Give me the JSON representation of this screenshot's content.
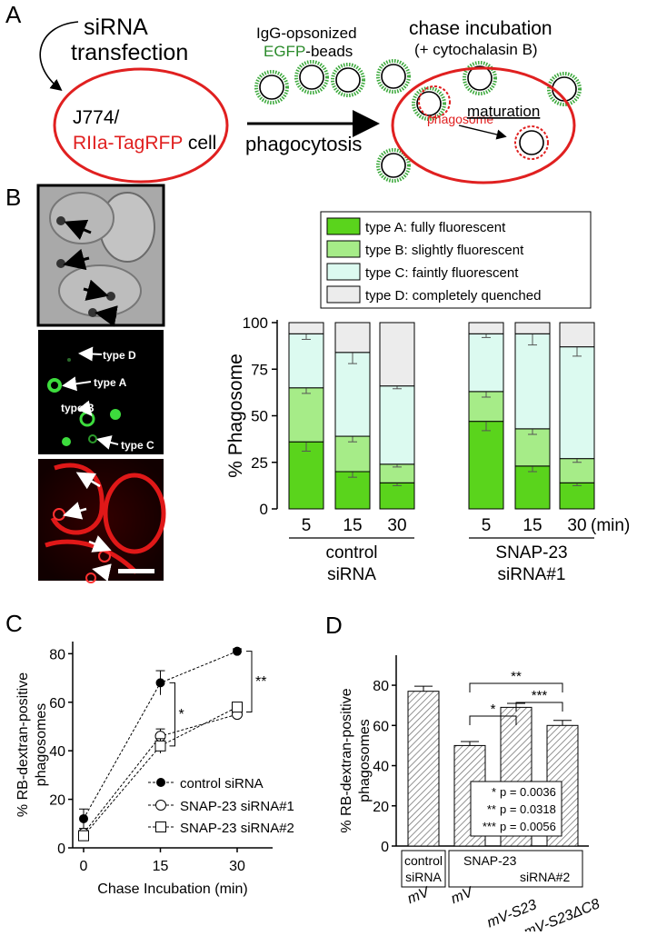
{
  "panelA": {
    "label": "A",
    "sirna_line1": "siRNA",
    "sirna_line2": "transfection",
    "cell_line1": "J774/",
    "cell_line2_red": "RIIa-TagRFP",
    "cell_line2_black": " cell",
    "beads_line1": "IgG-opsonized",
    "beads_egfp": "EGFP",
    "beads_rest": "-beads",
    "arrow_label": "phagocytosis",
    "chase_line1": "chase incubation",
    "chase_line2": "(+ cytochalasin B)",
    "maturation": "maturation",
    "phagosome": "phagosome"
  },
  "panelB": {
    "label": "B",
    "mic_labels": [
      "type D",
      "type A",
      "type B",
      "type C"
    ],
    "chart_data": {
      "type": "bar",
      "stacked": true,
      "categories": [
        "5",
        "15",
        "30",
        "5",
        "15",
        "30"
      ],
      "x_unit": "(min)",
      "groups": [
        {
          "line1": "control",
          "line2": "siRNA"
        },
        {
          "line1": "SNAP-23",
          "line2": "siRNA#1"
        }
      ],
      "ylabel": "% Phagosome",
      "ylim": [
        0,
        100
      ],
      "yticks": [
        0,
        25,
        50,
        75,
        100
      ],
      "series": [
        {
          "name": "type A: fully fluorescent",
          "color": "#5ad41c",
          "values": [
            36,
            20,
            14,
            47,
            23,
            14
          ],
          "err": [
            5,
            3,
            1.5,
            5,
            3,
            1.5
          ]
        },
        {
          "name": "type B: slightly fluorescent",
          "color": "#a6ec88",
          "values": [
            29,
            19,
            10,
            16,
            20,
            13
          ],
          "err": [
            3,
            3,
            1.5,
            3,
            3,
            2
          ]
        },
        {
          "name": "type C: faintly fluorescent",
          "color": "#dcfaf0",
          "values": [
            29,
            45,
            42,
            31,
            51,
            60
          ],
          "err": [
            3,
            6,
            1.5,
            2,
            6,
            5
          ]
        },
        {
          "name": "type D: completely quenched",
          "color": "#ececec",
          "values": [
            6,
            16,
            34,
            6,
            6,
            13
          ],
          "err": [
            3,
            3,
            3,
            3,
            3,
            1.5
          ]
        }
      ]
    }
  },
  "panelC": {
    "label": "C",
    "chart_data": {
      "type": "line",
      "x": [
        0,
        15,
        30
      ],
      "xlabel": "Chase Incubation (min)",
      "ylabel_line1": "% RB-dextran-positive",
      "ylabel_line2": "phagosomes",
      "ylim": [
        0,
        85
      ],
      "yticks": [
        0,
        20,
        40,
        60,
        80
      ],
      "xticks": [
        0,
        15,
        30
      ],
      "series": [
        {
          "name": "control siRNA",
          "marker": "filled-circle",
          "values": [
            12,
            68,
            81
          ],
          "err": [
            4,
            5,
            1
          ]
        },
        {
          "name": "SNAP-23 siRNA#1",
          "marker": "open-circle",
          "values": [
            6,
            46,
            55
          ],
          "err": [
            2,
            3,
            1
          ]
        },
        {
          "name": "SNAP-23 siRNA#2",
          "marker": "open-square",
          "values": [
            5,
            42,
            58
          ],
          "err": [
            2,
            3,
            1
          ]
        }
      ],
      "significance": [
        {
          "x": 15,
          "label": "*"
        },
        {
          "x": 30,
          "label": "**"
        }
      ]
    }
  },
  "panelD": {
    "label": "D",
    "chart_data": {
      "type": "bar",
      "categories": [
        "mV",
        "mV",
        "mV-S23",
        "mV-S23ΔC8"
      ],
      "values": [
        77,
        50,
        69,
        60
      ],
      "err": [
        2.5,
        2,
        2,
        2.5
      ],
      "ylabel_line1": "% RB-dextran-positive",
      "ylabel_line2": "phagosomes",
      "ylim": [
        0,
        85
      ],
      "yticks": [
        0,
        20,
        40,
        60,
        80
      ],
      "group1_line1": "control",
      "group1_line2": "siRNA",
      "group2_line1": "SNAP-23",
      "group2_line2": "siRNA#2",
      "comparisons": [
        {
          "from": 1,
          "to": 2,
          "label": "*"
        },
        {
          "from": 2,
          "to": 3,
          "label": "***"
        },
        {
          "from": 1,
          "to": 3,
          "label": "**"
        }
      ],
      "pvalues": [
        {
          "stars": "*",
          "text": "p = 0.0036"
        },
        {
          "stars": "**",
          "text": "p = 0.0318"
        },
        {
          "stars": "***",
          "text": "p = 0.0056"
        }
      ]
    }
  }
}
